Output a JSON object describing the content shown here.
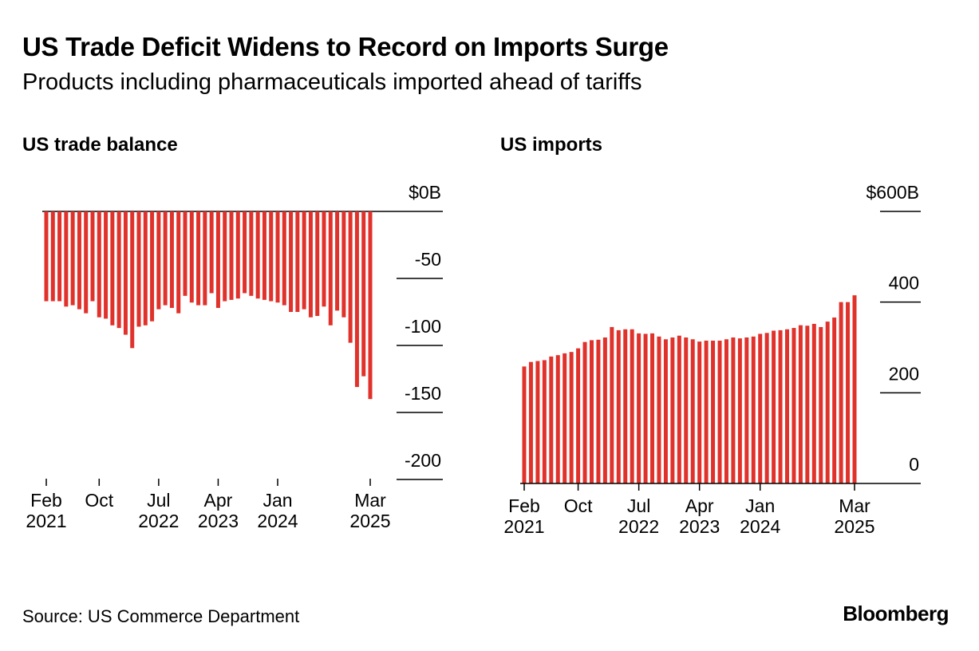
{
  "title": "US Trade Deficit Widens to Record on Imports Surge",
  "subtitle": "Products including pharmaceuticals imported ahead of tariffs",
  "source": "Source: US Commerce Department",
  "brand": "Bloomberg",
  "colors": {
    "bar": "#e0312b",
    "axis": "#000000",
    "text": "#000000"
  },
  "chart_data": [
    {
      "type": "bar",
      "title": "US trade balance",
      "ylabel": "",
      "ylim": [
        -200,
        0
      ],
      "ytick_labels": [
        "$0B",
        "-50",
        "-100",
        "-150",
        "-200"
      ],
      "ytick_values": [
        0,
        -50,
        -100,
        -150,
        -200
      ],
      "xtick_labels": [
        {
          "line1": "Feb",
          "line2": "2021"
        },
        {
          "line1": "Oct",
          "line2": ""
        },
        {
          "line1": "Jul",
          "line2": "2022"
        },
        {
          "line1": "Apr",
          "line2": "2023"
        },
        {
          "line1": "Jan",
          "line2": "2024"
        },
        {
          "line1": "Mar",
          "line2": "2025"
        }
      ],
      "xtick_months": [
        "2021-02",
        "2021-10",
        "2022-07",
        "2023-04",
        "2024-01",
        "2025-03"
      ],
      "months": [
        "2021-02",
        "2021-03",
        "2021-04",
        "2021-05",
        "2021-06",
        "2021-07",
        "2021-08",
        "2021-09",
        "2021-10",
        "2021-11",
        "2021-12",
        "2022-01",
        "2022-02",
        "2022-03",
        "2022-04",
        "2022-05",
        "2022-06",
        "2022-07",
        "2022-08",
        "2022-09",
        "2022-10",
        "2022-11",
        "2022-12",
        "2023-01",
        "2023-02",
        "2023-03",
        "2023-04",
        "2023-05",
        "2023-06",
        "2023-07",
        "2023-08",
        "2023-09",
        "2023-10",
        "2023-11",
        "2023-12",
        "2024-01",
        "2024-02",
        "2024-03",
        "2024-04",
        "2024-05",
        "2024-06",
        "2024-07",
        "2024-08",
        "2024-09",
        "2024-10",
        "2024-11",
        "2024-12",
        "2025-01",
        "2025-02",
        "2025-03"
      ],
      "values": [
        -67,
        -67,
        -67,
        -71,
        -70,
        -73,
        -76,
        -67,
        -79,
        -80,
        -85,
        -87,
        -92,
        -102,
        -86,
        -85,
        -82,
        -73,
        -70,
        -72,
        -76,
        -63,
        -68,
        -70,
        -70,
        -61,
        -72,
        -67,
        -66,
        -65,
        -61,
        -63,
        -65,
        -66,
        -67,
        -68,
        -70,
        -75,
        -75,
        -73,
        -79,
        -78,
        -71,
        -85,
        -74,
        -79,
        -98,
        -131,
        -123,
        -140
      ]
    },
    {
      "type": "bar",
      "title": "US imports",
      "ylabel": "",
      "ylim": [
        0,
        600
      ],
      "ytick_labels": [
        "$600B",
        "400",
        "200",
        "0"
      ],
      "ytick_values": [
        600,
        400,
        200,
        0
      ],
      "xtick_labels": [
        {
          "line1": "Feb",
          "line2": "2021"
        },
        {
          "line1": "Oct",
          "line2": ""
        },
        {
          "line1": "Jul",
          "line2": "2022"
        },
        {
          "line1": "Apr",
          "line2": "2023"
        },
        {
          "line1": "Jan",
          "line2": "2024"
        },
        {
          "line1": "Mar",
          "line2": "2025"
        }
      ],
      "xtick_months": [
        "2021-02",
        "2021-10",
        "2022-07",
        "2023-04",
        "2024-01",
        "2025-03"
      ],
      "months": [
        "2021-02",
        "2021-03",
        "2021-04",
        "2021-05",
        "2021-06",
        "2021-07",
        "2021-08",
        "2021-09",
        "2021-10",
        "2021-11",
        "2021-12",
        "2022-01",
        "2022-02",
        "2022-03",
        "2022-04",
        "2022-05",
        "2022-06",
        "2022-07",
        "2022-08",
        "2022-09",
        "2022-10",
        "2022-11",
        "2022-12",
        "2023-01",
        "2023-02",
        "2023-03",
        "2023-04",
        "2023-05",
        "2023-06",
        "2023-07",
        "2023-08",
        "2023-09",
        "2023-10",
        "2023-11",
        "2023-12",
        "2024-01",
        "2024-02",
        "2024-03",
        "2024-04",
        "2024-05",
        "2024-06",
        "2024-07",
        "2024-08",
        "2024-09",
        "2024-10",
        "2024-11",
        "2024-12",
        "2025-01",
        "2025-02",
        "2025-03"
      ],
      "values": [
        258,
        268,
        270,
        272,
        280,
        283,
        287,
        290,
        298,
        312,
        316,
        317,
        322,
        345,
        338,
        340,
        340,
        331,
        330,
        331,
        324,
        318,
        322,
        326,
        322,
        318,
        313,
        315,
        315,
        315,
        318,
        322,
        320,
        322,
        324,
        330,
        332,
        337,
        338,
        340,
        343,
        349,
        348,
        352,
        345,
        357,
        366,
        400,
        400,
        415
      ]
    }
  ]
}
